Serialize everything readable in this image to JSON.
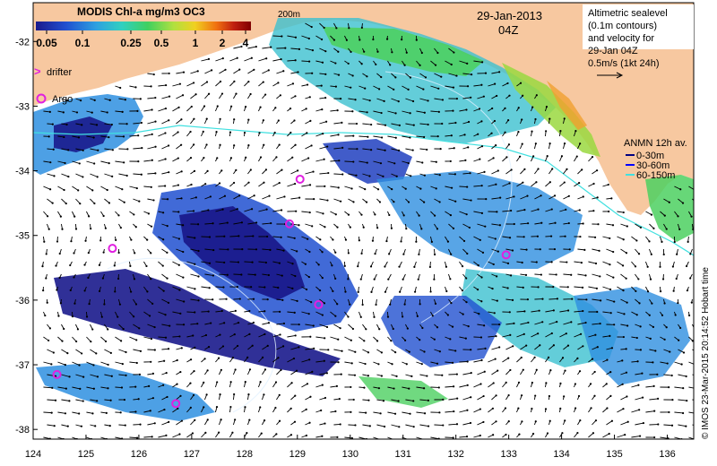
{
  "colorbar": {
    "title": "MODIS Chl-a mg/m3 OC3",
    "ticks": [
      "0.05",
      "0.1",
      "0.25",
      "0.5",
      "1",
      "2",
      "4"
    ],
    "colors": [
      "#1a1a8c",
      "#2050d0",
      "#2ea0e0",
      "#30d0c0",
      "#40d060",
      "#b0e040",
      "#f0d020",
      "#f07010",
      "#c02010",
      "#800000"
    ]
  },
  "contour_label": "200m",
  "date": "29-Jan-2013",
  "time": "04Z",
  "altimetry_legend": [
    "Altimetric sealevel",
    "(0.1m contours)",
    "and velocity for",
    "29-Jan 04Z",
    "0.5m/s (1kt 24h)"
  ],
  "drifter_label": "drifter",
  "argo_label": "Argo",
  "anmn": {
    "title": "ANMN 12h av.",
    "items": [
      {
        "label": "0-30m",
        "color": "#000080"
      },
      {
        "label": "30-60m",
        "color": "#0000ff"
      },
      {
        "label": "60-150m",
        "color": "#40e0e0"
      }
    ]
  },
  "credit": "© IMOS 23-Mar-2015 20:14:52 Hobart time",
  "axes": {
    "x_ticks": [
      "124",
      "125",
      "126",
      "127",
      "128",
      "129",
      "130",
      "131",
      "132",
      "133",
      "134",
      "135",
      "136"
    ],
    "y_ticks": [
      "-32",
      "-33",
      "-34",
      "-35",
      "-36",
      "-37",
      "-38"
    ]
  },
  "argo_floats": [
    {
      "lon": 129.05,
      "lat": -34.13
    },
    {
      "lon": 128.85,
      "lat": -34.82
    },
    {
      "lon": 125.5,
      "lat": -35.2
    },
    {
      "lon": 132.95,
      "lat": -35.3
    },
    {
      "lon": 129.4,
      "lat": -36.07
    },
    {
      "lon": 124.45,
      "lat": -37.15
    },
    {
      "lon": 126.7,
      "lat": -37.6
    }
  ],
  "colors": {
    "land": "#f7c8a0",
    "ocean_nodata": "#ffffff",
    "argo": "#e020e0",
    "arrow": "#000000"
  }
}
